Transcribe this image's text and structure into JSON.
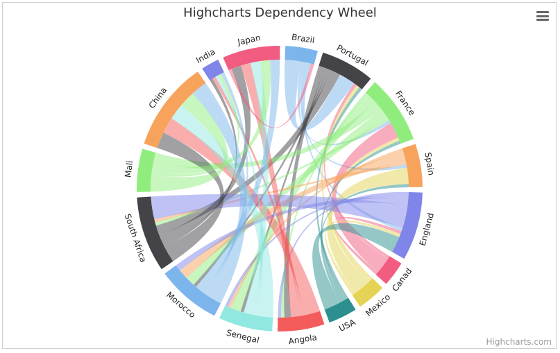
{
  "chart_data": {
    "type": "dependencywheel",
    "title": "Highcharts Dependency Wheel",
    "credits": "Highcharts.com",
    "menu_icon": "hamburger-menu-icon",
    "nodes": [
      {
        "name": "Brazil",
        "color": "#7cb5ec"
      },
      {
        "name": "Portugal",
        "color": "#434348"
      },
      {
        "name": "France",
        "color": "#90ed7d"
      },
      {
        "name": "Spain",
        "color": "#f7a35c"
      },
      {
        "name": "England",
        "color": "#8085e9"
      },
      {
        "name": "Canada",
        "label": "Canad",
        "color": "#f15c80"
      },
      {
        "name": "Mexico",
        "color": "#e4d354"
      },
      {
        "name": "USA",
        "color": "#2b908f"
      },
      {
        "name": "Angola",
        "color": "#f45b5b"
      },
      {
        "name": "Senegal",
        "color": "#91e8e1"
      },
      {
        "name": "Morocco",
        "color": "#7cb5ec"
      },
      {
        "name": "South Africa",
        "color": "#434348"
      },
      {
        "name": "Mali",
        "color": "#90ed7d"
      },
      {
        "name": "China",
        "color": "#f7a35c"
      },
      {
        "name": "India",
        "color": "#8085e9"
      },
      {
        "name": "Japan",
        "color": "#f15c80"
      }
    ],
    "links": [
      [
        "Brazil",
        "Portugal",
        5
      ],
      [
        "Brazil",
        "France",
        1
      ],
      [
        "Brazil",
        "Spain",
        1
      ],
      [
        "Brazil",
        "England",
        1
      ],
      [
        "Canada",
        "Portugal",
        1
      ],
      [
        "Canada",
        "France",
        5
      ],
      [
        "Canada",
        "England",
        1
      ],
      [
        "Mexico",
        "Portugal",
        1
      ],
      [
        "Mexico",
        "France",
        1
      ],
      [
        "Mexico",
        "Spain",
        5
      ],
      [
        "Mexico",
        "England",
        1
      ],
      [
        "USA",
        "Portugal",
        1
      ],
      [
        "USA",
        "France",
        1
      ],
      [
        "USA",
        "Spain",
        1
      ],
      [
        "USA",
        "England",
        5
      ],
      [
        "Portugal",
        "Angola",
        2
      ],
      [
        "Portugal",
        "Senegal",
        1
      ],
      [
        "Portugal",
        "Morocco",
        1
      ],
      [
        "Portugal",
        "South Africa",
        3
      ],
      [
        "France",
        "Angola",
        1
      ],
      [
        "France",
        "Senegal",
        3
      ],
      [
        "France",
        "Mali",
        3
      ],
      [
        "France",
        "Morocco",
        3
      ],
      [
        "France",
        "South Africa",
        1
      ],
      [
        "Spain",
        "Senegal",
        1
      ],
      [
        "Spain",
        "Morocco",
        3
      ],
      [
        "Spain",
        "South Africa",
        1
      ],
      [
        "England",
        "Angola",
        1
      ],
      [
        "England",
        "Senegal",
        1
      ],
      [
        "England",
        "Morocco",
        2
      ],
      [
        "England",
        "South Africa",
        7
      ],
      [
        "South Africa",
        "China",
        5
      ],
      [
        "South Africa",
        "India",
        1
      ],
      [
        "South Africa",
        "Japan",
        3
      ],
      [
        "Angola",
        "China",
        5
      ],
      [
        "Angola",
        "India",
        1
      ],
      [
        "Angola",
        "Japan",
        3
      ],
      [
        "Senegal",
        "China",
        5
      ],
      [
        "Senegal",
        "India",
        1
      ],
      [
        "Senegal",
        "Japan",
        3
      ],
      [
        "Mali",
        "China",
        5
      ],
      [
        "Mali",
        "India",
        1
      ],
      [
        "Mali",
        "Japan",
        3
      ],
      [
        "Morocco",
        "China",
        5
      ],
      [
        "Morocco",
        "India",
        1
      ],
      [
        "Morocco",
        "Japan",
        3
      ],
      [
        "Japan",
        "Brazil",
        1
      ]
    ]
  }
}
